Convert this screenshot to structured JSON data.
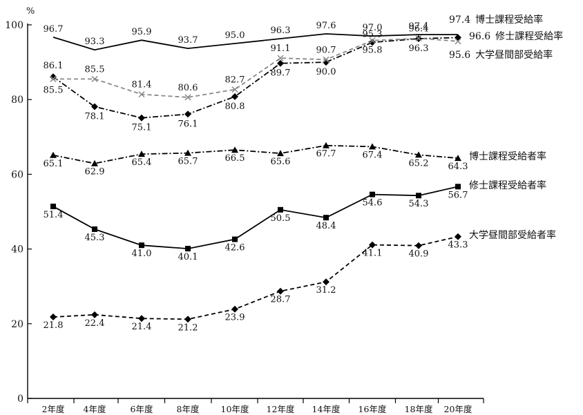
{
  "chart_data": {
    "type": "line",
    "title": "",
    "ylabel": "%",
    "xlabel": "",
    "ylim": [
      0,
      100
    ],
    "yticks": [
      0,
      20,
      40,
      60,
      80,
      100
    ],
    "categories": [
      "2年度",
      "4年度",
      "6年度",
      "8年度",
      "10年度",
      "12年度",
      "14年度",
      "16年度",
      "18年度",
      "20年度"
    ],
    "grid": false,
    "series": [
      {
        "name": "博士課程受給率",
        "values": [
          96.7,
          93.3,
          95.9,
          93.7,
          95.0,
          96.3,
          97.6,
          97.0,
          97.4,
          97.4
        ],
        "color": "#000000",
        "style": "solid",
        "marker": "none",
        "end_value": "97.4"
      },
      {
        "name": "修士課程受給率",
        "values": [
          86.1,
          78.1,
          75.1,
          76.1,
          80.8,
          89.7,
          90.0,
          95.3,
          96.3,
          96.6
        ],
        "color": "#000000",
        "style": "dashdot",
        "marker": "diamond",
        "end_value": "96.6"
      },
      {
        "name": "大学昼間部受給率",
        "values": [
          85.5,
          85.5,
          81.4,
          80.6,
          82.7,
          91.1,
          90.7,
          95.8,
          96.4,
          95.6
        ],
        "color": "#888888",
        "style": "dashed",
        "marker": "x",
        "end_value": "95.6"
      },
      {
        "name": "博士課程受給者率",
        "values": [
          65.1,
          62.9,
          65.4,
          65.7,
          66.5,
          65.6,
          67.7,
          67.4,
          65.2,
          64.3
        ],
        "color": "#000000",
        "style": "dashdot",
        "marker": "triangle"
      },
      {
        "name": "修士課程受給者率",
        "values": [
          51.4,
          45.3,
          41.0,
          40.1,
          42.6,
          50.5,
          48.4,
          54.6,
          54.3,
          56.7
        ],
        "color": "#000000",
        "style": "solid",
        "marker": "square"
      },
      {
        "name": "大学昼間部受給者率",
        "values": [
          21.8,
          22.4,
          21.4,
          21.2,
          23.9,
          28.7,
          31.2,
          41.1,
          40.9,
          43.3
        ],
        "color": "#000000",
        "style": "dashed",
        "marker": "diamond"
      }
    ]
  }
}
